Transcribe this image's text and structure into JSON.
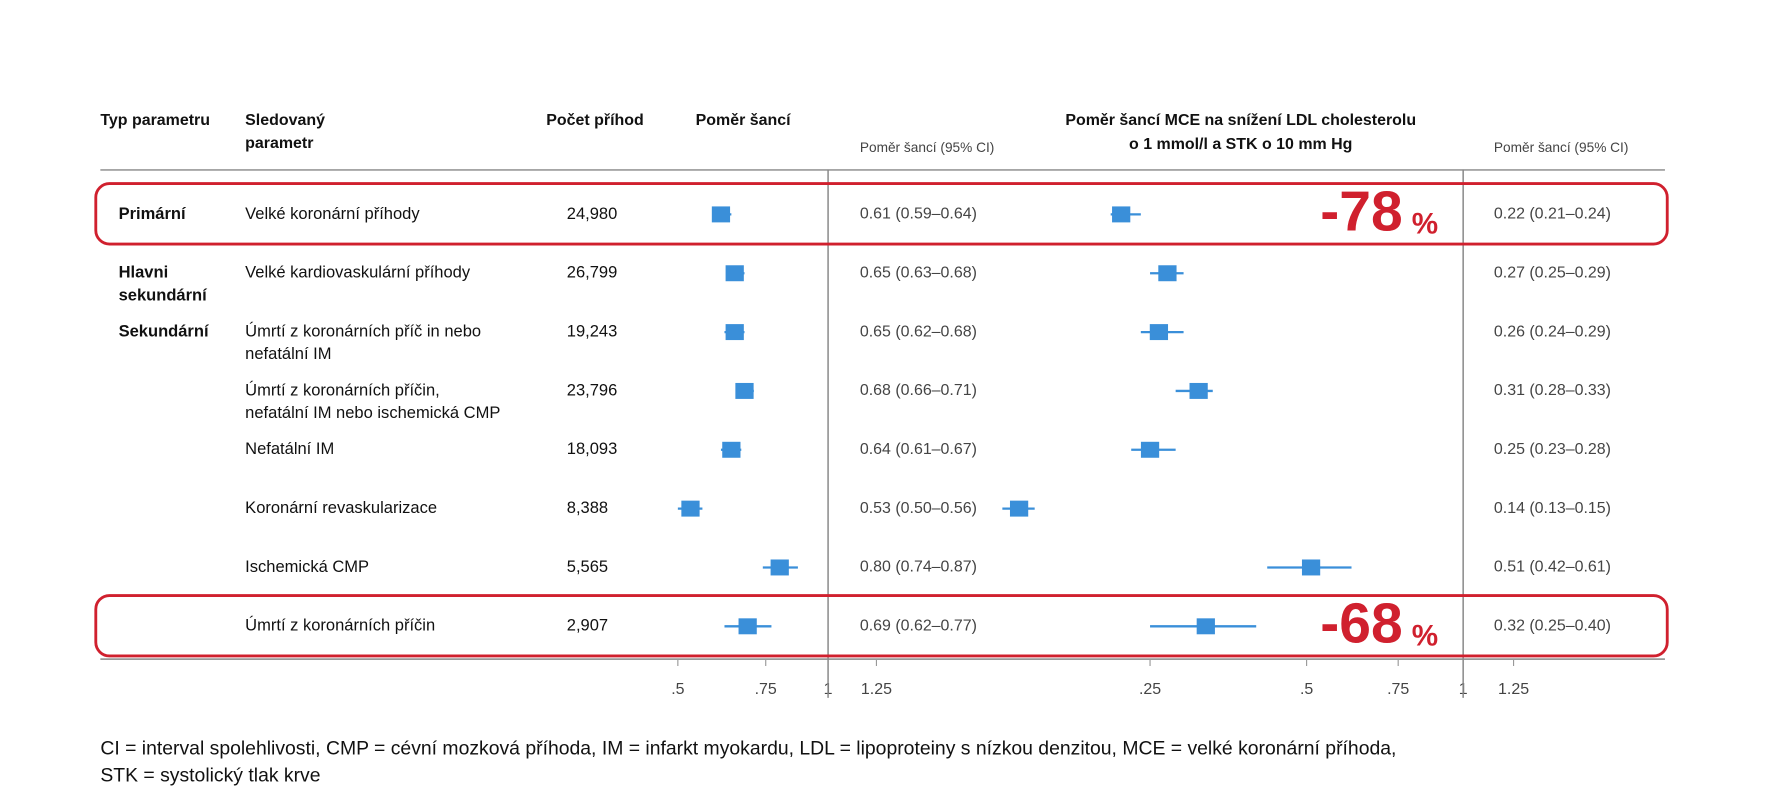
{
  "chart_data": {
    "type": "forest",
    "headers": {
      "type": "Typ parametru",
      "parameter": [
        "Sledovaný",
        "parametr"
      ],
      "events": "Počet příhod",
      "or": "Poměr šancí",
      "ci1": "Poměr šancí (95% CI)",
      "panel2_title": [
        "Poměr šancí MCE na snížení LDL cholesterolu",
        "o 1 mmol/l a STK o 10 mm Hg"
      ],
      "ci2": "Poměr šancí (95% CI)"
    },
    "color": "#3a8fd9",
    "highlight_color": "#d0202e",
    "panels": [
      {
        "xlim": [
          0.4,
          1.3
        ],
        "log": true,
        "xticks": [
          {
            "value": 0.5,
            "label": ".5"
          },
          {
            "value": 0.75,
            "label": ".75"
          },
          1,
          1.25
        ]
      },
      {
        "xlim": [
          0.1,
          1.3
        ],
        "log": true,
        "xticks": [
          {
            "value": 0.25,
            "label": ".25"
          },
          {
            "value": 0.5,
            "label": ".5"
          },
          {
            "value": 0.75,
            "label": ".75"
          },
          1,
          1.25
        ]
      }
    ],
    "rows": [
      {
        "type": [
          "Primární"
        ],
        "parameter": [
          "Velké koronární příhody"
        ],
        "events": "24,980",
        "or1": {
          "or": 0.61,
          "lo": 0.59,
          "hi": 0.64,
          "label": "0.61 (0.59–0.64)"
        },
        "or2": {
          "or": 0.22,
          "lo": 0.21,
          "hi": 0.24,
          "label": "0.22 (0.21–0.24)"
        },
        "highlight": {
          "value": -78,
          "unit": "%"
        }
      },
      {
        "type": [
          "Hlavni",
          "sekundární"
        ],
        "parameter": [
          "Velké kardiovaskulární příhody"
        ],
        "events": "26,799",
        "or1": {
          "or": 0.65,
          "lo": 0.63,
          "hi": 0.68,
          "label": "0.65 (0.63–0.68)"
        },
        "or2": {
          "or": 0.27,
          "lo": 0.25,
          "hi": 0.29,
          "label": "0.27 (0.25–0.29)"
        }
      },
      {
        "type": [
          "Sekundární"
        ],
        "parameter": [
          "Úmrtí z koronárních příč in nebo",
          "nefatální IM"
        ],
        "events": "19,243",
        "or1": {
          "or": 0.65,
          "lo": 0.62,
          "hi": 0.68,
          "label": "0.65 (0.62–0.68)"
        },
        "or2": {
          "or": 0.26,
          "lo": 0.24,
          "hi": 0.29,
          "label": "0.26 (0.24–0.29)"
        }
      },
      {
        "parameter": [
          "Úmrtí z koronárních příčin,",
          "nefatální IM nebo ischemická CMP"
        ],
        "events": "23,796",
        "or1": {
          "or": 0.68,
          "lo": 0.66,
          "hi": 0.71,
          "label": "0.68 (0.66–0.71)"
        },
        "or2": {
          "or": 0.31,
          "lo": 0.28,
          "hi": 0.33,
          "label": "0.31 (0.28–0.33)"
        }
      },
      {
        "parameter": [
          "Nefatální IM"
        ],
        "events": "18,093",
        "or1": {
          "or": 0.64,
          "lo": 0.61,
          "hi": 0.67,
          "label": "0.64 (0.61–0.67)"
        },
        "or2": {
          "or": 0.25,
          "lo": 0.23,
          "hi": 0.28,
          "label": "0.25 (0.23–0.28)"
        }
      },
      {
        "parameter": [
          "Koronární revaskularizace"
        ],
        "events": "8,388",
        "or1": {
          "or": 0.53,
          "lo": 0.5,
          "hi": 0.56,
          "label": "0.53 (0.50–0.56)"
        },
        "or2": {
          "or": 0.14,
          "lo": 0.13,
          "hi": 0.15,
          "label": "0.14 (0.13–0.15)"
        }
      },
      {
        "parameter": [
          "Ischemická CMP"
        ],
        "events": "5,565",
        "or1": {
          "or": 0.8,
          "lo": 0.74,
          "hi": 0.87,
          "label": "0.80 (0.74–0.87)"
        },
        "or2": {
          "or": 0.51,
          "lo": 0.42,
          "hi": 0.61,
          "label": "0.51 (0.42–0.61)"
        }
      },
      {
        "parameter": [
          "Úmrtí z koronárních příčin"
        ],
        "events": "2,907",
        "or1": {
          "or": 0.69,
          "lo": 0.62,
          "hi": 0.77,
          "label": "0.69 (0.62–0.77)"
        },
        "or2": {
          "or": 0.32,
          "lo": 0.25,
          "hi": 0.4,
          "label": "0.32 (0.25–0.40)"
        },
        "highlight": {
          "value": -68,
          "unit": "%"
        }
      }
    ],
    "footnote": [
      "CI = interval spolehlivosti, CMP = cévní mozková příhoda, IM = infarkt myokardu, LDL = lipoproteiny s nízkou denzitou, MCE = velké koronární příhoda,",
      "STK = systolický tlak krve"
    ]
  }
}
